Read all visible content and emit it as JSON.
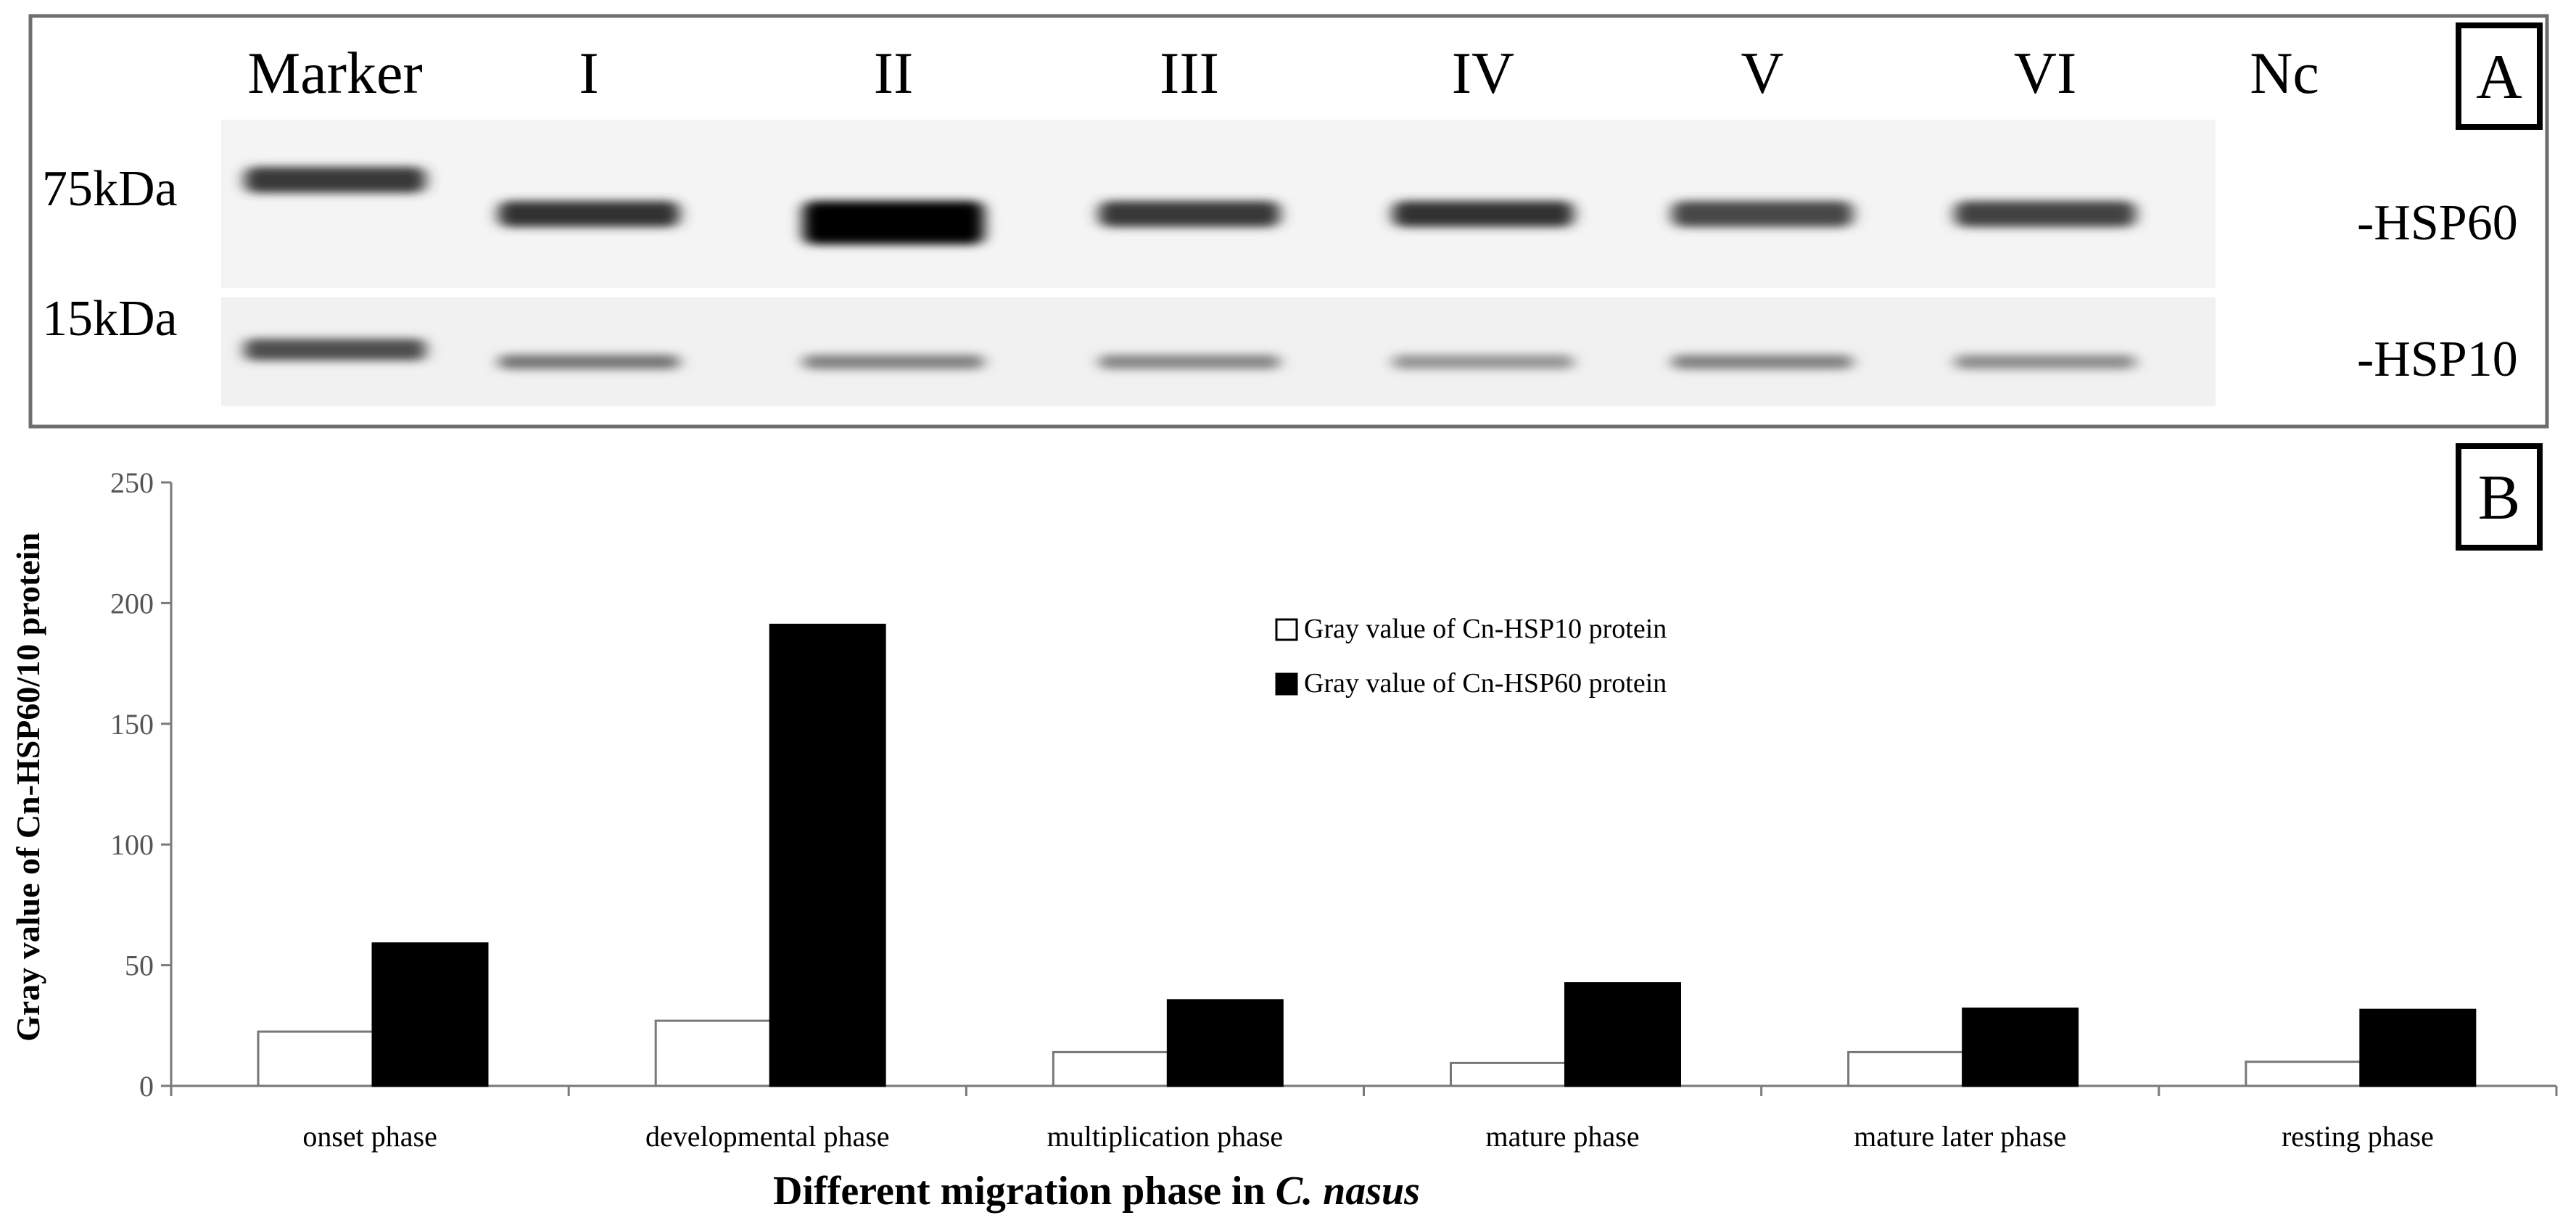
{
  "panel_a": {
    "label": "A",
    "lanes": [
      "Marker",
      "I",
      "II",
      "III",
      "IV",
      "V",
      "VI",
      "Nc"
    ],
    "marker_labels": [
      "75kDa",
      "15kDa"
    ],
    "band_labels": [
      "-HSP60",
      "-HSP10"
    ],
    "hsp60_intensity": [
      0.78,
      0.8,
      1.0,
      0.78,
      0.8,
      0.72,
      0.74,
      0
    ],
    "hsp10_intensity": [
      0.7,
      0.55,
      0.5,
      0.48,
      0.42,
      0.5,
      0.45,
      0
    ]
  },
  "chart_data": {
    "type": "bar",
    "panel_label": "B",
    "categories": [
      "onset phase",
      "developmental  phase",
      "multiplication phase",
      "mature phase",
      "mature later phase",
      "resting phase"
    ],
    "series": [
      {
        "name": "Gray value of Cn-HSP10 protein",
        "values": [
          22.5,
          27,
          14,
          9.5,
          14,
          10
        ],
        "color": "#ffffff"
      },
      {
        "name": "Gray value of Cn-HSP60 protein",
        "values": [
          59,
          191,
          35.5,
          42.5,
          32,
          31.5
        ],
        "color": "#000000"
      }
    ],
    "xlabel_parts": [
      "Different migration phase in ",
      "C. nasus"
    ],
    "ylabel": "Gray value of Cn-HSP60/10 protein",
    "ylim": [
      0,
      250
    ],
    "yticks": [
      0,
      50,
      100,
      150,
      200,
      250
    ],
    "grid": false,
    "legend_position": "center-right"
  }
}
